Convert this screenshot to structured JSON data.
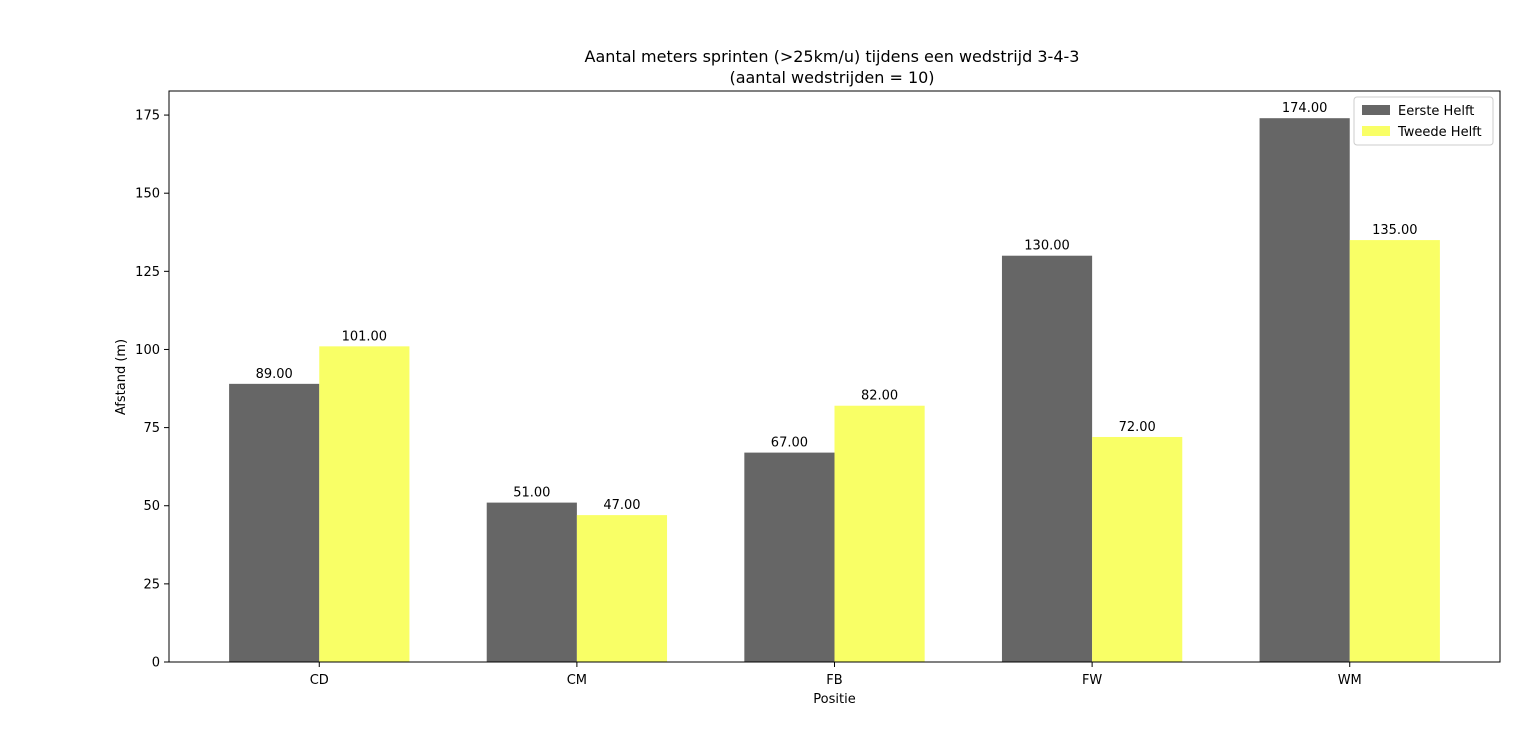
{
  "chart_data": {
    "type": "bar",
    "title": "Aantal meters sprinten (>25km/u) tijdens een wedstrijd 3-4-3",
    "subtitle": "(aantal wedstrijden = 10)",
    "xlabel": "Positie",
    "ylabel": "Afstand (m)",
    "categories": [
      "CD",
      "CM",
      "FB",
      "FW",
      "WM"
    ],
    "series": [
      {
        "name": "Eerste Helft",
        "color": "#666666",
        "values": [
          89,
          51,
          67,
          130,
          174
        ],
        "labels": [
          "89.00",
          "51.00",
          "67.00",
          "130.00",
          "174.00"
        ]
      },
      {
        "name": "Tweede Helft",
        "color": "#f9ff66",
        "values": [
          101,
          47,
          82,
          72,
          135
        ],
        "labels": [
          "101.00",
          "47.00",
          "82.00",
          "72.00",
          "135.00"
        ]
      }
    ],
    "ylim": [
      0,
      182.7
    ],
    "yticks": [
      0,
      25,
      50,
      75,
      100,
      125,
      150,
      175
    ],
    "ytick_labels": [
      "0",
      "25",
      "50",
      "75",
      "100",
      "125",
      "150",
      "175"
    ],
    "grid": false,
    "legend_position": "top-right"
  }
}
